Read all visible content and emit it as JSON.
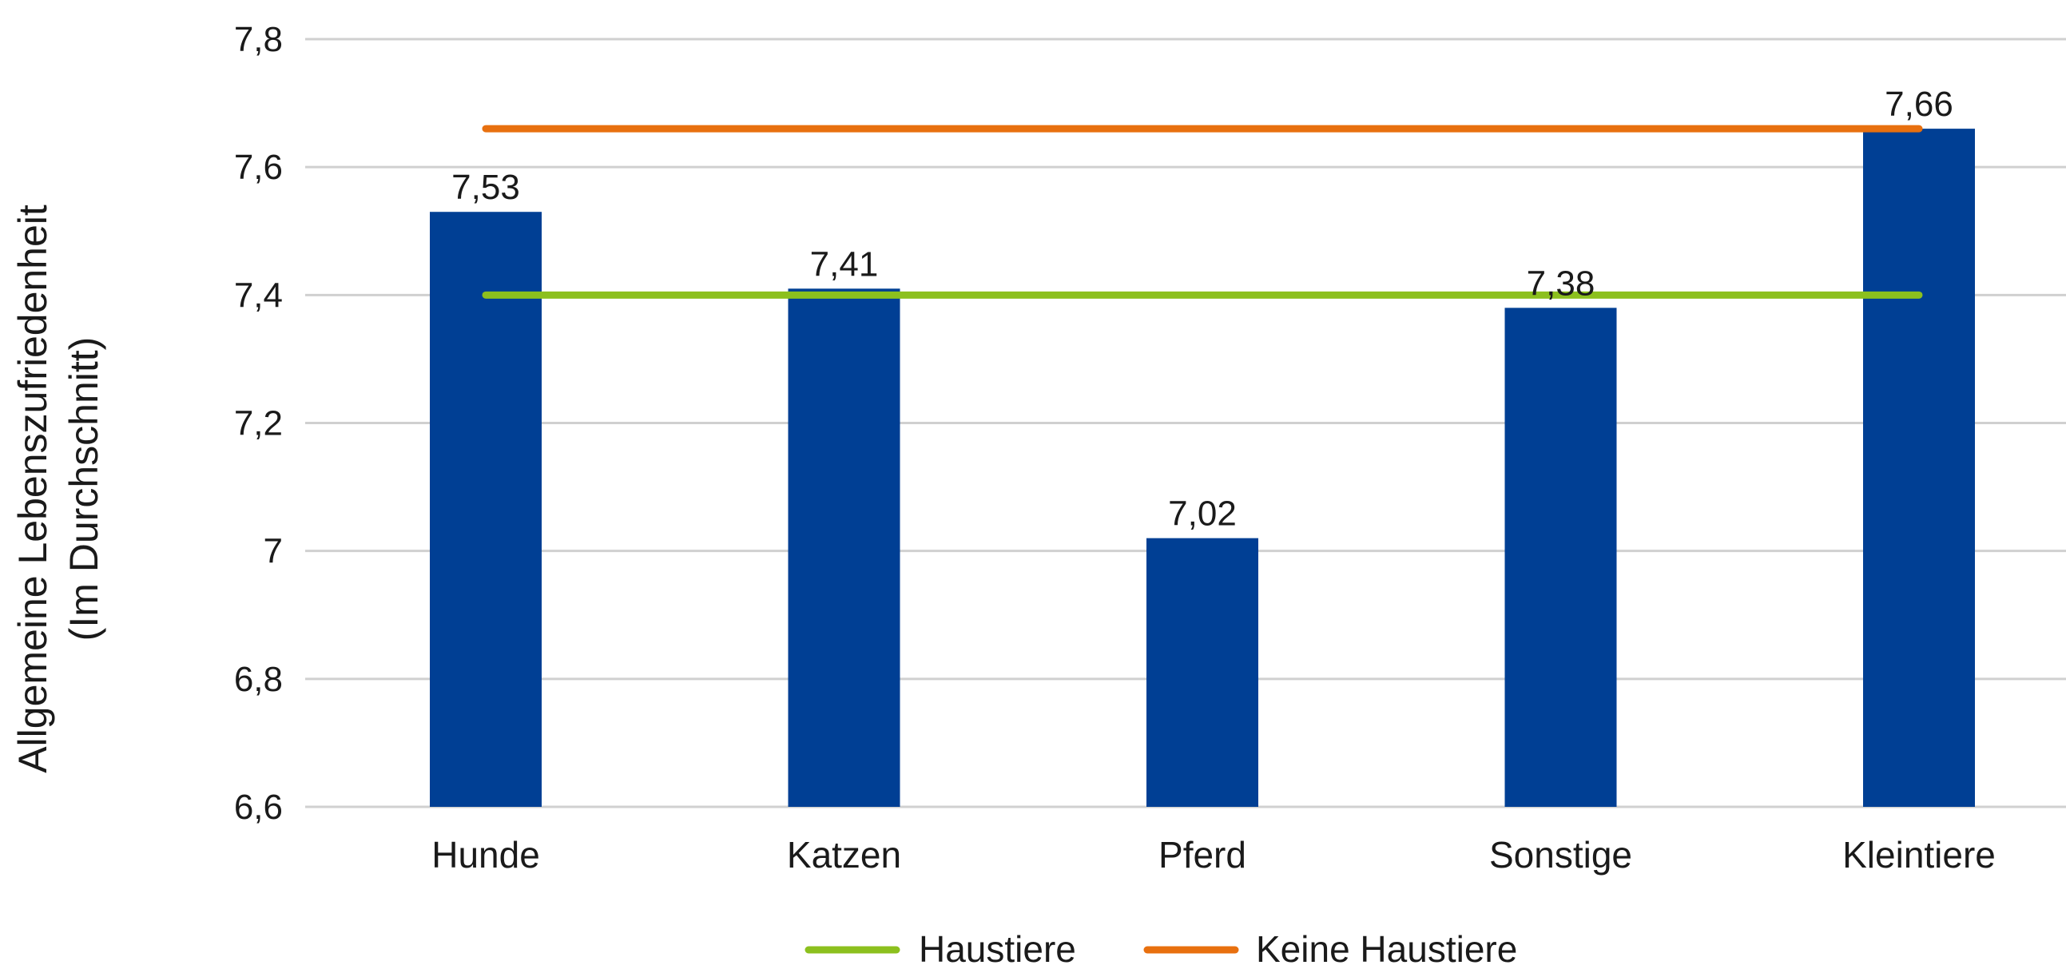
{
  "chart_data": {
    "type": "bar",
    "categories": [
      "Hunde",
      "Katzen",
      "Pferd",
      "Sonstige",
      "Kleintiere"
    ],
    "values": [
      7.53,
      7.41,
      7.02,
      7.38,
      7.66
    ],
    "data_labels": [
      "7,53",
      "7,41",
      "7,02",
      "7,38",
      "7,66"
    ],
    "bar_color": "#003f94",
    "ylabel_lines": [
      "Allgemeine Lebenszufriedenheit",
      "(Im Durchschnitt)"
    ],
    "ylim": [
      6.6,
      7.8
    ],
    "yticks": [
      6.6,
      6.8,
      7.0,
      7.2,
      7.4,
      7.6,
      7.8
    ],
    "ytick_labels": [
      "6,6",
      "6,8",
      "7",
      "7,2",
      "7,4",
      "7,6",
      "7,8"
    ],
    "grid": true,
    "reference_lines": [
      {
        "name": "Haustiere",
        "value": 7.4,
        "color": "#8cc01e"
      },
      {
        "name": "Keine Haustiere",
        "value": 7.66,
        "color": "#e8700f"
      }
    ],
    "legend_position": "bottom"
  }
}
